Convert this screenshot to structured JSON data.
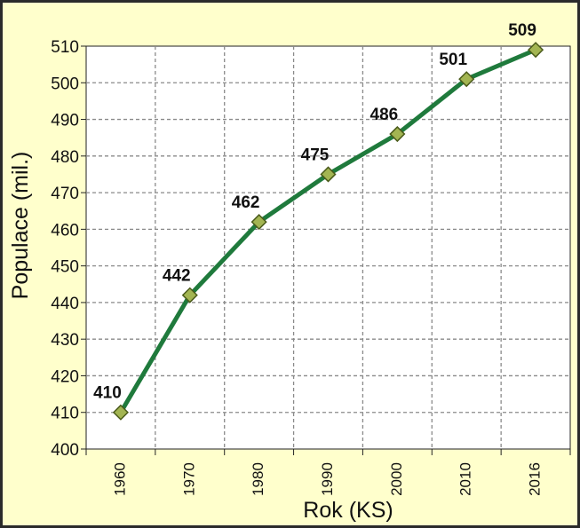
{
  "chart_data": {
    "type": "line",
    "categories": [
      "1960",
      "1970",
      "1980",
      "1990",
      "2000",
      "2010",
      "2016"
    ],
    "series": [
      {
        "values": [
          410,
          442,
          462,
          475,
          486,
          501,
          509
        ]
      }
    ],
    "data_labels": [
      "410",
      "442",
      "462",
      "475",
      "486",
      "501",
      "509"
    ],
    "xlabel": "Rok (KS)",
    "ylabel": "Populace (mil.)",
    "ylim": [
      400,
      510
    ],
    "y_ticks": [
      400,
      410,
      420,
      430,
      440,
      450,
      460,
      470,
      480,
      490,
      500,
      510
    ],
    "grid": true,
    "grid_style": "dashed",
    "legend": false,
    "colors": {
      "background": "#ffffcc",
      "plot_area": "#ffffff",
      "line": "#1f7a3c",
      "marker": "#a3b552",
      "marker_edge": "#4a5a1a",
      "border": "#2b2b2b"
    }
  }
}
